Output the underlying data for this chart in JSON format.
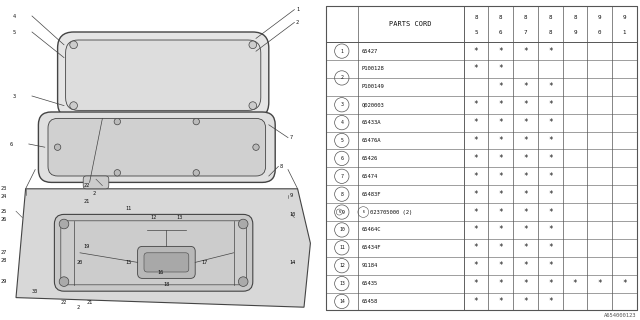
{
  "title": "1987 Subaru XT Sun Roof Diagram 1",
  "bg_color": "#ffffff",
  "table_header": "PARTS CORD",
  "year_cols": [
    "85",
    "86",
    "87",
    "88",
    "89",
    "90",
    "91"
  ],
  "year_top": [
    "8",
    "8",
    "8",
    "8",
    "8",
    "9",
    "9"
  ],
  "year_bot": [
    "5",
    "6",
    "7",
    "8",
    "9",
    "0",
    "1"
  ],
  "rows": [
    {
      "num": "1",
      "part": "65427",
      "marks": [
        1,
        1,
        1,
        1,
        0,
        0,
        0
      ],
      "group_start": true,
      "group_rows": 1
    },
    {
      "num": "2",
      "part": "P100128",
      "marks": [
        1,
        1,
        0,
        0,
        0,
        0,
        0
      ],
      "group_start": true,
      "group_rows": 2
    },
    {
      "num": "2",
      "part": "P100149",
      "marks": [
        0,
        1,
        1,
        1,
        0,
        0,
        0
      ],
      "group_start": false,
      "group_rows": 0
    },
    {
      "num": "3",
      "part": "Q020003",
      "marks": [
        1,
        1,
        1,
        1,
        0,
        0,
        0
      ],
      "group_start": true,
      "group_rows": 1
    },
    {
      "num": "4",
      "part": "65433A",
      "marks": [
        1,
        1,
        1,
        1,
        0,
        0,
        0
      ],
      "group_start": true,
      "group_rows": 1
    },
    {
      "num": "5",
      "part": "65476A",
      "marks": [
        1,
        1,
        1,
        1,
        0,
        0,
        0
      ],
      "group_start": true,
      "group_rows": 1
    },
    {
      "num": "6",
      "part": "65426",
      "marks": [
        1,
        1,
        1,
        1,
        0,
        0,
        0
      ],
      "group_start": true,
      "group_rows": 1
    },
    {
      "num": "7",
      "part": "65474",
      "marks": [
        1,
        1,
        1,
        1,
        0,
        0,
        0
      ],
      "group_start": true,
      "group_rows": 1
    },
    {
      "num": "8",
      "part": "65483F",
      "marks": [
        1,
        1,
        1,
        1,
        0,
        0,
        0
      ],
      "group_start": true,
      "group_rows": 1
    },
    {
      "num": "9",
      "part": "023705000 (2)",
      "marks": [
        1,
        1,
        1,
        1,
        0,
        0,
        0
      ],
      "group_start": true,
      "group_rows": 1,
      "N": true
    },
    {
      "num": "10",
      "part": "65464C",
      "marks": [
        1,
        1,
        1,
        1,
        0,
        0,
        0
      ],
      "group_start": true,
      "group_rows": 1
    },
    {
      "num": "11",
      "part": "65434F",
      "marks": [
        1,
        1,
        1,
        1,
        0,
        0,
        0
      ],
      "group_start": true,
      "group_rows": 1
    },
    {
      "num": "12",
      "part": "91184",
      "marks": [
        1,
        1,
        1,
        1,
        0,
        0,
        0
      ],
      "group_start": true,
      "group_rows": 1
    },
    {
      "num": "13",
      "part": "65435",
      "marks": [
        1,
        1,
        1,
        1,
        1,
        1,
        1
      ],
      "group_start": true,
      "group_rows": 1
    },
    {
      "num": "14",
      "part": "65458",
      "marks": [
        1,
        1,
        1,
        1,
        0,
        0,
        0
      ],
      "group_start": true,
      "group_rows": 1
    }
  ],
  "footnote": "A654000123",
  "line_color": "#444444",
  "text_color": "#111111",
  "star_color": "#111111"
}
